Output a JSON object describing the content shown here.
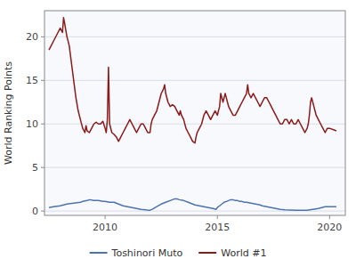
{
  "chart_data": {
    "type": "line",
    "ylabel": "World Ranking Points",
    "xlim": [
      2007.3,
      2020.7
    ],
    "ylim": [
      -0.5,
      23
    ],
    "xticks": [
      2010,
      2015,
      2020
    ],
    "yticks": [
      0,
      5,
      10,
      15,
      20
    ],
    "grid": true,
    "legend": "bottom",
    "series": [
      {
        "name": "Toshinori Muto",
        "color": "#4c72b0",
        "x": [
          2007.5,
          2007.7,
          2008.0,
          2008.3,
          2008.6,
          2008.9,
          2009.0,
          2009.2,
          2009.3,
          2009.5,
          2009.7,
          2009.9,
          2010.0,
          2010.2,
          2010.4,
          2010.6,
          2010.8,
          2011.0,
          2011.2,
          2011.4,
          2011.6,
          2011.8,
          2011.9,
          2012.0,
          2012.1,
          2012.3,
          2012.5,
          2012.7,
          2012.9,
          2013.0,
          2013.1,
          2013.2,
          2013.3,
          2013.5,
          2013.7,
          2013.9,
          2014.0,
          2014.2,
          2014.4,
          2014.6,
          2014.8,
          2014.95,
          2015.0,
          2015.1,
          2015.2,
          2015.3,
          2015.4,
          2015.5,
          2015.6,
          2015.7,
          2015.8,
          2015.9,
          2016.0,
          2016.1,
          2016.2,
          2016.3,
          2016.5,
          2016.7,
          2016.9,
          2017.0,
          2017.2,
          2017.4,
          2017.6,
          2017.8,
          2018.0,
          2018.5,
          2018.8,
          2019.0,
          2019.5,
          2019.8,
          2020.0,
          2020.3
        ],
        "values": [
          0.4,
          0.5,
          0.6,
          0.8,
          0.9,
          1.0,
          1.1,
          1.2,
          1.3,
          1.2,
          1.2,
          1.1,
          1.1,
          1.0,
          1.0,
          0.8,
          0.6,
          0.5,
          0.4,
          0.3,
          0.2,
          0.15,
          0.1,
          0.1,
          0.2,
          0.5,
          0.8,
          1.0,
          1.2,
          1.3,
          1.4,
          1.4,
          1.3,
          1.2,
          1.0,
          0.8,
          0.7,
          0.6,
          0.5,
          0.4,
          0.3,
          0.2,
          0.4,
          0.6,
          0.8,
          1.0,
          1.1,
          1.2,
          1.3,
          1.3,
          1.2,
          1.2,
          1.1,
          1.1,
          1.0,
          1.0,
          0.9,
          0.8,
          0.7,
          0.6,
          0.5,
          0.4,
          0.3,
          0.2,
          0.15,
          0.1,
          0.08,
          0.08,
          0.3,
          0.5,
          0.5,
          0.5
        ]
      },
      {
        "name": "World #1",
        "color": "#8b1a1a",
        "x": [
          2007.5,
          2007.7,
          2007.9,
          2008.0,
          2008.1,
          2008.15,
          2008.2,
          2008.3,
          2008.4,
          2008.5,
          2008.6,
          2008.7,
          2008.8,
          2008.9,
          2009.0,
          2009.1,
          2009.15,
          2009.2,
          2009.3,
          2009.4,
          2009.5,
          2009.6,
          2009.7,
          2009.8,
          2009.9,
          2010.0,
          2010.05,
          2010.1,
          2010.15,
          2010.2,
          2010.3,
          2010.4,
          2010.5,
          2010.6,
          2010.7,
          2010.8,
          2010.9,
          2011.0,
          2011.1,
          2011.2,
          2011.3,
          2011.4,
          2011.5,
          2011.6,
          2011.7,
          2011.8,
          2011.9,
          2012.0,
          2012.05,
          2012.1,
          2012.2,
          2012.3,
          2012.4,
          2012.5,
          2012.6,
          2012.65,
          2012.7,
          2012.8,
          2012.9,
          2013.0,
          2013.1,
          2013.2,
          2013.3,
          2013.35,
          2013.4,
          2013.5,
          2013.6,
          2013.7,
          2013.8,
          2013.9,
          2014.0,
          2014.05,
          2014.1,
          2014.2,
          2014.3,
          2014.4,
          2014.5,
          2014.6,
          2014.7,
          2014.8,
          2014.9,
          2015.0,
          2015.05,
          2015.1,
          2015.15,
          2015.2,
          2015.25,
          2015.3,
          2015.35,
          2015.4,
          2015.45,
          2015.5,
          2015.6,
          2015.7,
          2015.8,
          2015.9,
          2016.0,
          2016.1,
          2016.2,
          2016.3,
          2016.35,
          2016.4,
          2016.5,
          2016.6,
          2016.7,
          2016.8,
          2016.9,
          2017.0,
          2017.1,
          2017.2,
          2017.3,
          2017.4,
          2017.5,
          2017.6,
          2017.7,
          2017.8,
          2017.9,
          2018.0,
          2018.1,
          2018.2,
          2018.3,
          2018.4,
          2018.5,
          2018.6,
          2018.7,
          2018.8,
          2018.9,
          2019.0,
          2019.05,
          2019.1,
          2019.15,
          2019.2,
          2019.25,
          2019.3,
          2019.35,
          2019.4,
          2019.5,
          2019.6,
          2019.7,
          2019.8,
          2019.9,
          2020.0,
          2020.3
        ],
        "values": [
          18.5,
          19.5,
          20.5,
          21.0,
          20.5,
          22.2,
          21.5,
          20.0,
          19.0,
          17.0,
          15.0,
          13.0,
          11.5,
          10.5,
          9.5,
          9.0,
          9.8,
          9.2,
          9.0,
          9.5,
          10.0,
          10.2,
          10.0,
          10.0,
          10.3,
          9.5,
          9.0,
          10.5,
          16.5,
          10.0,
          9.0,
          8.8,
          8.5,
          8.0,
          8.5,
          9.0,
          9.5,
          10.0,
          10.5,
          10.0,
          9.5,
          9.0,
          9.5,
          10.0,
          10.0,
          9.5,
          9.0,
          9.0,
          10.0,
          10.5,
          11.0,
          11.5,
          12.5,
          13.5,
          14.0,
          14.5,
          13.5,
          12.5,
          12.0,
          12.2,
          12.0,
          11.5,
          11.0,
          11.5,
          11.0,
          10.5,
          9.5,
          9.0,
          8.5,
          8.0,
          7.8,
          8.5,
          9.0,
          9.5,
          10.0,
          11.0,
          11.5,
          11.0,
          10.5,
          11.0,
          11.5,
          11.0,
          11.5,
          12.0,
          13.5,
          13.0,
          12.5,
          13.0,
          13.5,
          13.0,
          12.5,
          12.0,
          11.5,
          11.0,
          11.0,
          11.5,
          12.0,
          12.5,
          13.0,
          13.5,
          14.5,
          13.5,
          13.0,
          13.5,
          13.0,
          12.5,
          12.0,
          12.5,
          13.0,
          13.0,
          12.5,
          12.0,
          11.5,
          11.0,
          10.5,
          10.0,
          10.0,
          10.5,
          10.5,
          10.0,
          10.5,
          10.0,
          10.0,
          10.5,
          10.0,
          9.5,
          9.0,
          9.5,
          10.0,
          11.0,
          12.5,
          13.0,
          12.5,
          12.0,
          11.5,
          11.0,
          10.5,
          10.0,
          9.5,
          9.0,
          9.5,
          9.5,
          9.2
        ]
      }
    ]
  }
}
